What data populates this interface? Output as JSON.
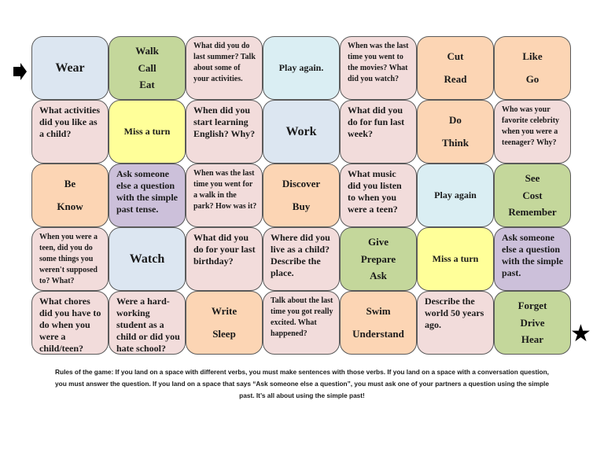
{
  "colors": {
    "blue": "#dce6f1",
    "green": "#c4d79b",
    "pink": "#f2dcdb",
    "lightblue": "#daeef3",
    "orange": "#fcd5b4",
    "yellow": "#ffff99",
    "purple": "#ccc0da"
  },
  "start_icon": "right-arrow-icon",
  "finish_icon": "star-icon",
  "board": [
    [
      {
        "type": "verbs",
        "big": true,
        "color": "blue",
        "lines": [
          "Wear"
        ]
      },
      {
        "type": "verbs",
        "color": "green",
        "lines": [
          "Walk",
          "Call",
          "Eat"
        ]
      },
      {
        "type": "q",
        "small": true,
        "color": "pink",
        "text": "What did you do last summer? Talk about some of your activities."
      },
      {
        "type": "center",
        "color": "lightblue",
        "text": "Play again."
      },
      {
        "type": "q",
        "small": true,
        "color": "pink",
        "text": "When was the last time you went to the movies? What did you watch?"
      },
      {
        "type": "verbs",
        "color": "orange",
        "lines": [
          "Cut",
          "Read"
        ]
      },
      {
        "type": "verbs",
        "color": "orange",
        "lines": [
          "Like",
          "Go"
        ]
      }
    ],
    [
      {
        "type": "q",
        "color": "pink",
        "text": "What activities did you like as a child?"
      },
      {
        "type": "center",
        "color": "yellow",
        "text": "Miss a turn"
      },
      {
        "type": "q",
        "color": "pink",
        "text": "When did you start learning English? Why?"
      },
      {
        "type": "verbs",
        "big": true,
        "color": "blue",
        "lines": [
          "Work"
        ]
      },
      {
        "type": "q",
        "color": "pink",
        "text": "What did you do for fun last week?"
      },
      {
        "type": "verbs",
        "color": "orange",
        "lines": [
          "Do",
          "Think"
        ]
      },
      {
        "type": "q",
        "small": true,
        "color": "pink",
        "text": "Who was your favorite celebrity when you were a teenager? Why?"
      }
    ],
    [
      {
        "type": "verbs",
        "color": "orange",
        "lines": [
          "Be",
          "Know"
        ]
      },
      {
        "type": "q",
        "color": "purple",
        "text": "Ask someone else a question with the simple past tense."
      },
      {
        "type": "q",
        "small": true,
        "color": "pink",
        "text": "When was the last time you went for a walk in the park? How was it?"
      },
      {
        "type": "verbs",
        "color": "orange",
        "lines": [
          "Discover",
          "Buy"
        ]
      },
      {
        "type": "q",
        "color": "pink",
        "text": "What music did you listen to when you were a teen?"
      },
      {
        "type": "center",
        "color": "lightblue",
        "text": "Play again"
      },
      {
        "type": "verbs",
        "color": "green",
        "lines": [
          "See",
          "Cost",
          "Remember"
        ]
      }
    ],
    [
      {
        "type": "q",
        "small": true,
        "color": "pink",
        "text": "When you were a teen, did you do some things you weren't supposed to? What?"
      },
      {
        "type": "verbs",
        "big": true,
        "color": "blue",
        "lines": [
          "Watch"
        ]
      },
      {
        "type": "q",
        "color": "pink",
        "text": "What did you do for your last birthday?"
      },
      {
        "type": "q",
        "color": "pink",
        "text": "Where did you live as a child? Describe the place."
      },
      {
        "type": "verbs",
        "color": "green",
        "lines": [
          "Give",
          "Prepare",
          "Ask"
        ]
      },
      {
        "type": "center",
        "color": "yellow",
        "text": "Miss a turn"
      },
      {
        "type": "q",
        "color": "purple",
        "text": "Ask someone else a question with the simple past."
      }
    ],
    [
      {
        "type": "q",
        "color": "pink",
        "text": "What chores did you have to do when you were a child/teen?"
      },
      {
        "type": "q",
        "color": "pink",
        "text": "Were a hard-working student as a child or did you hate school?"
      },
      {
        "type": "verbs",
        "color": "orange",
        "lines": [
          "Write",
          "Sleep"
        ]
      },
      {
        "type": "q",
        "small": true,
        "color": "pink",
        "text": "Talk about the last time you got really excited. What happened?"
      },
      {
        "type": "verbs",
        "color": "orange",
        "lines": [
          "Swim",
          "Understand"
        ]
      },
      {
        "type": "q",
        "color": "pink",
        "text": "Describe the world 50 years ago."
      },
      {
        "type": "verbs",
        "color": "green",
        "lines": [
          "Forget",
          "Drive",
          "Hear"
        ]
      }
    ]
  ],
  "rules": "Rules of the game: If you land on a space with different verbs, you must make sentences with those verbs. If you land on a space with a conversation question, you must answer the question. If you land on a space that says “Ask someone else a question”, you must ask one of your partners a question using the simple past. It’s all about using the simple past!"
}
